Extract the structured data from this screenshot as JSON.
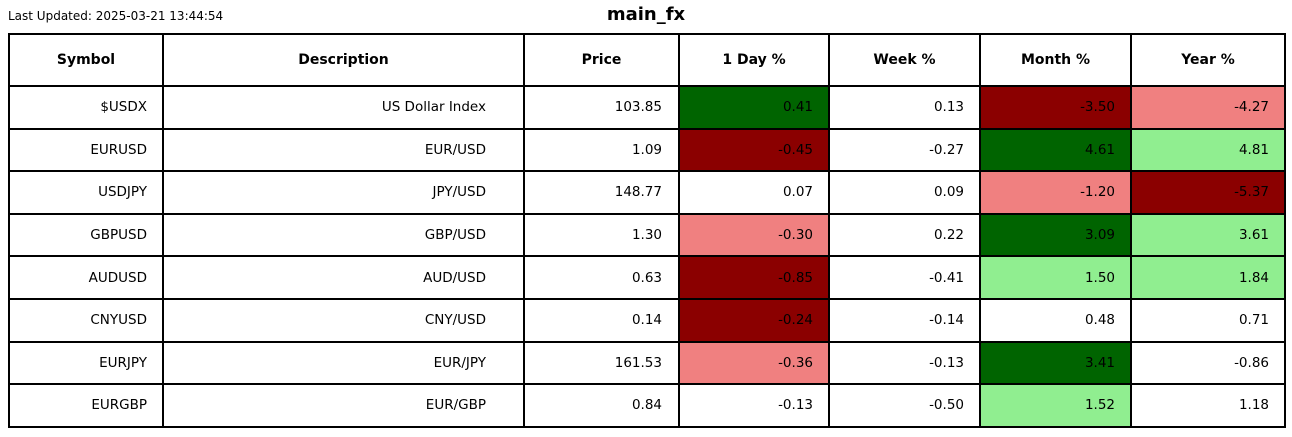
{
  "page": {
    "last_updated_label": "Last Updated: 2025-03-21 13:44:54",
    "title": "main_fx"
  },
  "colors": {
    "strong_up": "#006400",
    "mild_up": "#90EE90",
    "strong_down": "#8B0000",
    "mild_down": "#F08080",
    "grid": "#000000",
    "background": "#FFFFFF",
    "text": "#000000"
  },
  "chart_data": {
    "type": "table",
    "title": "main_fx",
    "last_updated": "2025-03-21 13:44:54",
    "columns": [
      "Symbol",
      "Description",
      "Price",
      "1 Day %",
      "Week %",
      "Month %",
      "Year %"
    ],
    "pct_columns": [
      "1 Day %",
      "Week %",
      "Month %",
      "Year %"
    ],
    "color_legend": {
      "strong_up": "#006400",
      "mild_up": "#90EE90",
      "strong_down": "#8B0000",
      "mild_down": "#F08080",
      "none": "#FFFFFF"
    },
    "rows": [
      {
        "symbol": "$USDX",
        "description": "US Dollar Index",
        "price": 103.85,
        "pcts": [
          {
            "v": 0.41,
            "c": "strong_up"
          },
          {
            "v": 0.13,
            "c": "none"
          },
          {
            "v": -3.5,
            "c": "strong_down"
          },
          {
            "v": -4.27,
            "c": "mild_down"
          }
        ]
      },
      {
        "symbol": "EURUSD",
        "description": "EUR/USD",
        "price": 1.09,
        "pcts": [
          {
            "v": -0.45,
            "c": "strong_down"
          },
          {
            "v": -0.27,
            "c": "none"
          },
          {
            "v": 4.61,
            "c": "strong_up"
          },
          {
            "v": 4.81,
            "c": "mild_up"
          }
        ]
      },
      {
        "symbol": "USDJPY",
        "description": "JPY/USD",
        "price": 148.77,
        "pcts": [
          {
            "v": 0.07,
            "c": "none"
          },
          {
            "v": 0.09,
            "c": "none"
          },
          {
            "v": -1.2,
            "c": "mild_down"
          },
          {
            "v": -5.37,
            "c": "strong_down"
          }
        ]
      },
      {
        "symbol": "GBPUSD",
        "description": "GBP/USD",
        "price": 1.3,
        "pcts": [
          {
            "v": -0.3,
            "c": "mild_down"
          },
          {
            "v": 0.22,
            "c": "none"
          },
          {
            "v": 3.09,
            "c": "strong_up"
          },
          {
            "v": 3.61,
            "c": "mild_up"
          }
        ]
      },
      {
        "symbol": "AUDUSD",
        "description": "AUD/USD",
        "price": 0.63,
        "pcts": [
          {
            "v": -0.85,
            "c": "strong_down"
          },
          {
            "v": -0.41,
            "c": "none"
          },
          {
            "v": 1.5,
            "c": "mild_up"
          },
          {
            "v": 1.84,
            "c": "mild_up"
          }
        ]
      },
      {
        "symbol": "CNYUSD",
        "description": "CNY/USD",
        "price": 0.14,
        "pcts": [
          {
            "v": -0.24,
            "c": "strong_down"
          },
          {
            "v": -0.14,
            "c": "none"
          },
          {
            "v": 0.48,
            "c": "none"
          },
          {
            "v": 0.71,
            "c": "none"
          }
        ]
      },
      {
        "symbol": "EURJPY",
        "description": "EUR/JPY",
        "price": 161.53,
        "pcts": [
          {
            "v": -0.36,
            "c": "mild_down"
          },
          {
            "v": -0.13,
            "c": "none"
          },
          {
            "v": 3.41,
            "c": "strong_up"
          },
          {
            "v": -0.86,
            "c": "none"
          }
        ]
      },
      {
        "symbol": "EURGBP",
        "description": "EUR/GBP",
        "price": 0.84,
        "pcts": [
          {
            "v": -0.13,
            "c": "none"
          },
          {
            "v": -0.5,
            "c": "none"
          },
          {
            "v": 1.52,
            "c": "mild_up"
          },
          {
            "v": 1.18,
            "c": "none"
          }
        ]
      }
    ]
  }
}
